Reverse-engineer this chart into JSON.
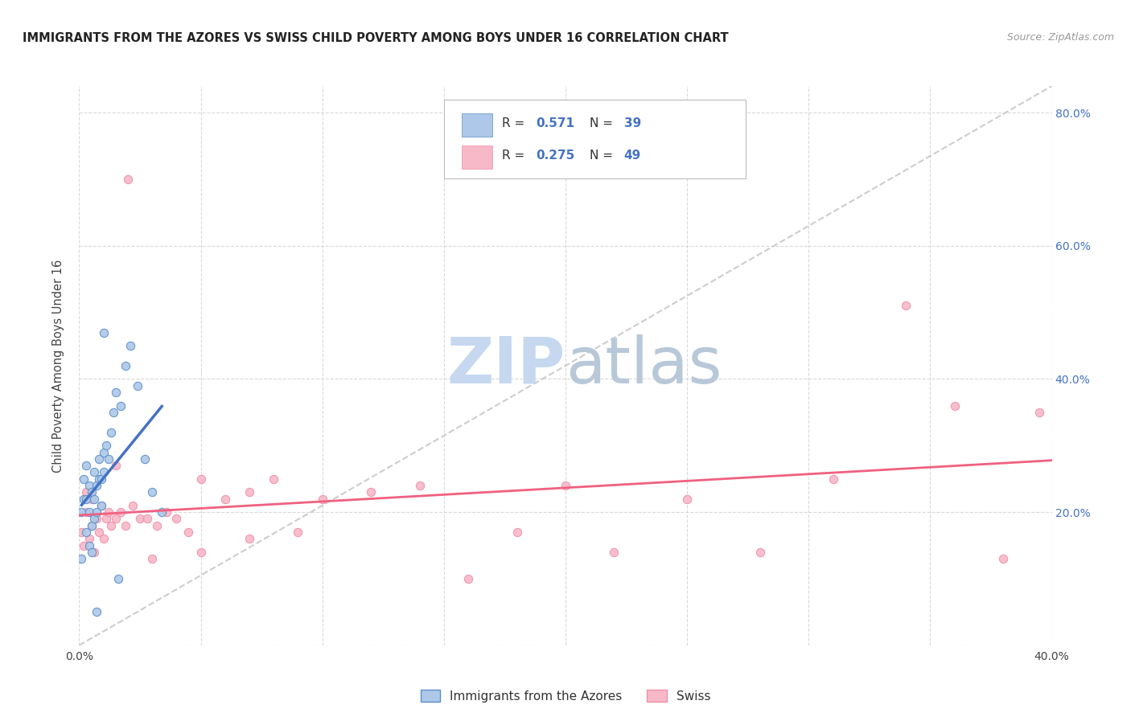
{
  "title": "IMMIGRANTS FROM THE AZORES VS SWISS CHILD POVERTY AMONG BOYS UNDER 16 CORRELATION CHART",
  "source": "Source: ZipAtlas.com",
  "ylabel": "Child Poverty Among Boys Under 16",
  "xlim": [
    0.0,
    0.4
  ],
  "ylim": [
    0.0,
    0.84
  ],
  "azores_color": "#adc8e8",
  "swiss_color": "#f7b8c8",
  "azores_edge_color": "#5b8fc9",
  "swiss_edge_color": "#f090a8",
  "azores_line_color": "#4472c4",
  "swiss_line_color": "#f06080",
  "diagonal_color": "#c8c8c8",
  "R_azores": "0.571",
  "N_azores": "39",
  "R_swiss": "0.275",
  "N_swiss": "49",
  "azores_x": [
    0.001,
    0.001,
    0.002,
    0.002,
    0.003,
    0.003,
    0.003,
    0.004,
    0.004,
    0.004,
    0.005,
    0.005,
    0.005,
    0.006,
    0.006,
    0.006,
    0.007,
    0.007,
    0.008,
    0.008,
    0.009,
    0.009,
    0.01,
    0.01,
    0.011,
    0.012,
    0.013,
    0.014,
    0.015,
    0.017,
    0.019,
    0.021,
    0.024,
    0.027,
    0.03,
    0.034,
    0.01,
    0.007,
    0.016
  ],
  "azores_y": [
    0.13,
    0.2,
    0.22,
    0.25,
    0.17,
    0.22,
    0.27,
    0.15,
    0.2,
    0.24,
    0.14,
    0.18,
    0.23,
    0.19,
    0.22,
    0.26,
    0.2,
    0.24,
    0.25,
    0.28,
    0.21,
    0.25,
    0.26,
    0.29,
    0.3,
    0.28,
    0.32,
    0.35,
    0.38,
    0.36,
    0.42,
    0.45,
    0.39,
    0.28,
    0.23,
    0.2,
    0.47,
    0.05,
    0.1
  ],
  "swiss_x": [
    0.001,
    0.002,
    0.003,
    0.003,
    0.004,
    0.005,
    0.005,
    0.006,
    0.007,
    0.008,
    0.009,
    0.01,
    0.011,
    0.012,
    0.013,
    0.015,
    0.017,
    0.019,
    0.022,
    0.025,
    0.028,
    0.032,
    0.036,
    0.04,
    0.045,
    0.05,
    0.06,
    0.07,
    0.08,
    0.09,
    0.1,
    0.12,
    0.14,
    0.16,
    0.18,
    0.2,
    0.22,
    0.25,
    0.28,
    0.31,
    0.34,
    0.36,
    0.38,
    0.395,
    0.05,
    0.07,
    0.02,
    0.03,
    0.015
  ],
  "swiss_y": [
    0.17,
    0.15,
    0.2,
    0.23,
    0.16,
    0.18,
    0.22,
    0.14,
    0.19,
    0.17,
    0.21,
    0.16,
    0.19,
    0.2,
    0.18,
    0.19,
    0.2,
    0.18,
    0.21,
    0.19,
    0.19,
    0.18,
    0.2,
    0.19,
    0.17,
    0.25,
    0.22,
    0.23,
    0.25,
    0.17,
    0.22,
    0.23,
    0.24,
    0.1,
    0.17,
    0.24,
    0.14,
    0.22,
    0.14,
    0.25,
    0.51,
    0.36,
    0.13,
    0.35,
    0.14,
    0.16,
    0.7,
    0.13,
    0.27
  ]
}
